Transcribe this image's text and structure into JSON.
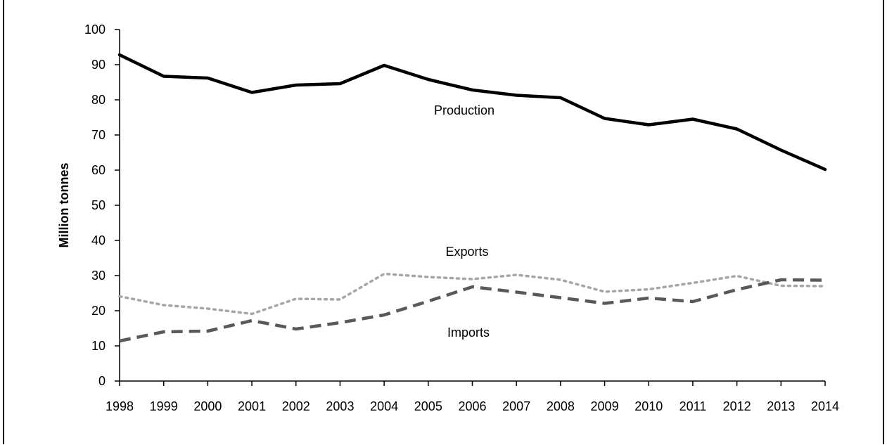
{
  "chart_data": {
    "type": "line",
    "title": "",
    "xlabel": "",
    "ylabel": "Million tonnes",
    "ylim": [
      0,
      100
    ],
    "yticks": [
      0,
      10,
      20,
      30,
      40,
      50,
      60,
      70,
      80,
      90,
      100
    ],
    "x": [
      "1998",
      "1999",
      "2000",
      "2001",
      "2002",
      "2003",
      "2004",
      "2005",
      "2006",
      "2007",
      "2008",
      "2009",
      "2010",
      "2011",
      "2012",
      "2013",
      "2014"
    ],
    "grid": false,
    "legend": "none (series labelled inline)",
    "series": [
      {
        "name": "Production",
        "style": "solid",
        "color": "#000000",
        "values": [
          92.8,
          86.7,
          86.2,
          82.1,
          84.2,
          84.6,
          89.8,
          85.8,
          82.8,
          81.3,
          80.6,
          74.7,
          72.9,
          74.5,
          71.7,
          65.7,
          60.2
        ]
      },
      {
        "name": "Exports",
        "style": "dotted",
        "color": "#a6a6a6",
        "values": [
          24.1,
          21.6,
          20.6,
          19.1,
          23.4,
          23.2,
          30.5,
          29.6,
          29.0,
          30.2,
          28.8,
          25.4,
          26.1,
          27.9,
          29.9,
          27.1,
          27.0
        ]
      },
      {
        "name": "Imports",
        "style": "dashed",
        "color": "#595959",
        "values": [
          11.4,
          14.0,
          14.2,
          17.2,
          14.8,
          16.6,
          18.8,
          22.7,
          26.8,
          25.3,
          23.7,
          22.1,
          23.6,
          22.6,
          26.0,
          28.8,
          28.7
        ]
      }
    ],
    "annotations": [
      {
        "text": "Production",
        "series": "Production"
      },
      {
        "text": "Exports",
        "series": "Exports"
      },
      {
        "text": "Imports",
        "series": "Imports"
      }
    ]
  }
}
